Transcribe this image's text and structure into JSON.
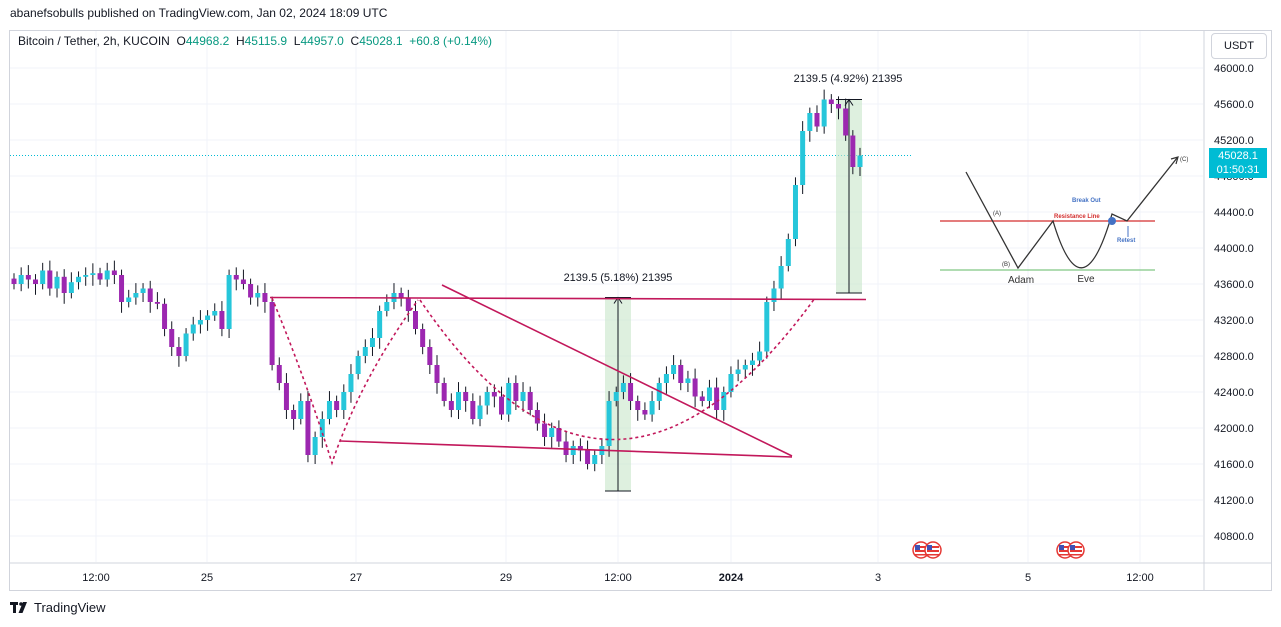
{
  "header": {
    "published": "abanefsobulls published on TradingView.com, Jan 02, 2024 18:09 UTC"
  },
  "legend": {
    "symbol": "Bitcoin / Tether, 2h, KUCOIN",
    "o_label": "O",
    "o": "44968.2",
    "h_label": "H",
    "h": "45115.9",
    "l_label": "L",
    "l": "44957.0",
    "c_label": "C",
    "c": "45028.1",
    "change": "+60.8 (+0.14%)"
  },
  "currency": "USDT",
  "last_price": {
    "price": "45028.1",
    "countdown": "01:50:31"
  },
  "footer": {
    "brand": "TradingView"
  },
  "colors": {
    "up": "#26c6da",
    "down": "#9c27b0",
    "pattern": "#c2185b",
    "measure_fill": "#c8e6c9",
    "price_line": "#00bcd4"
  },
  "chart_data": {
    "type": "candlestick",
    "symbol": "Bitcoin / Tether",
    "interval": "2h",
    "exchange": "KUCOIN",
    "ylim": [
      40800,
      46000
    ],
    "y_ticks": [
      "46000.0",
      "45600.0",
      "45200.0",
      "44800.0",
      "44400.0",
      "44000.0",
      "43600.0",
      "43200.0",
      "42800.0",
      "42400.0",
      "42000.0",
      "41600.0",
      "41200.0",
      "40800.0"
    ],
    "x_ticks": [
      "12:00",
      "25",
      "27",
      "29",
      "12:00",
      "2024",
      "3",
      "5",
      "12:00"
    ],
    "close_path": [
      43600,
      43700,
      43650,
      43600,
      43750,
      43550,
      43680,
      43500,
      43620,
      43680,
      43700,
      43720,
      43650,
      43750,
      43700,
      43400,
      43450,
      43500,
      43550,
      43400,
      43380,
      43100,
      42900,
      42800,
      43050,
      43150,
      43200,
      43250,
      43300,
      43100,
      43700,
      43650,
      43600,
      43450,
      43500,
      43400,
      42700,
      42500,
      42200,
      42100,
      42300,
      41700,
      41900,
      42100,
      42300,
      42200,
      42400,
      42600,
      42800,
      42900,
      43000,
      43300,
      43400,
      43500,
      43450,
      43300,
      43100,
      42900,
      42700,
      42500,
      42300,
      42200,
      42400,
      42300,
      42100,
      42250,
      42400,
      42350,
      42150,
      42500,
      42300,
      42400,
      42200,
      42050,
      41900,
      42000,
      41850,
      41700,
      41800,
      41750,
      41600,
      41700,
      41800,
      42300,
      42400,
      42500,
      42300,
      42200,
      42150,
      42300,
      42500,
      42600,
      42700,
      42500,
      42550,
      42350,
      42300,
      42450,
      42200,
      42400,
      42600,
      42650,
      42700,
      42750,
      42850,
      43400,
      43550,
      43800,
      44100,
      44700,
      45300,
      45500,
      45350,
      45650,
      45600,
      45550,
      45250,
      44900,
      45028.1
    ],
    "annotations": [
      {
        "text": "2139.5 (5.18%) 21395",
        "from_price": 41300,
        "to_price": 43450
      },
      {
        "text": "2139.5 (4.92%) 21395",
        "from_price": 43500,
        "to_price": 45650
      }
    ],
    "levels": {
      "neckline": 43450
    },
    "inset": {
      "labels": {
        "a": "(A)",
        "b": "(B)",
        "c": "(C)",
        "adam": "Adam",
        "eve": "Eve",
        "resistance": "Resistance Line",
        "breakout": "Break Out",
        "retest": "Retest"
      }
    }
  }
}
